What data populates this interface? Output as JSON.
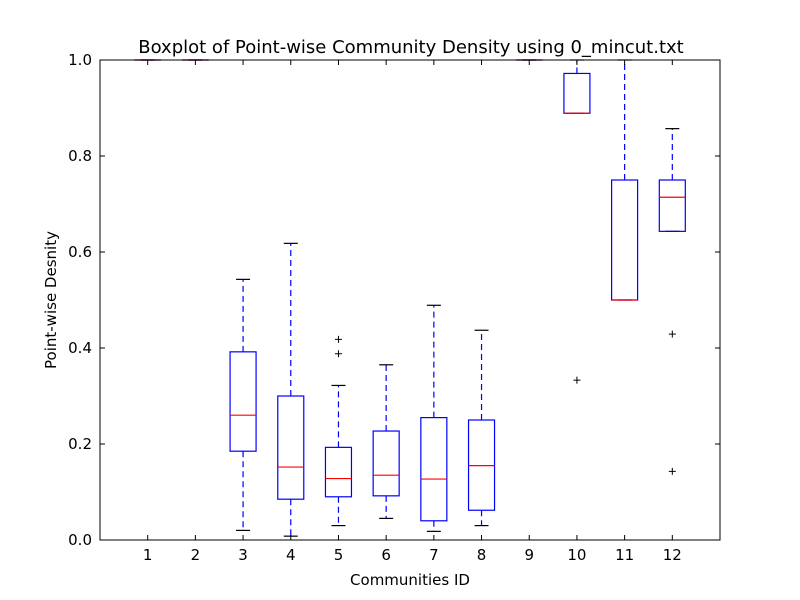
{
  "chart_data": {
    "type": "boxplot",
    "title": "Boxplot of Point-wise Community Density using 0_mincut.txt",
    "xlabel": "Communities ID",
    "ylabel": "Point-wise Desnity",
    "ylim": [
      0.0,
      1.0
    ],
    "yticks": [
      "0.0",
      "0.2",
      "0.4",
      "0.6",
      "0.8",
      "1.0"
    ],
    "categories": [
      "1",
      "2",
      "3",
      "4",
      "5",
      "6",
      "7",
      "8",
      "9",
      "10",
      "11",
      "12"
    ],
    "boxes": [
      {
        "id": "1",
        "whisker_low": 1.0,
        "q1": 1.0,
        "median": 1.0,
        "q3": 1.0,
        "whisker_high": 1.0,
        "outliers": []
      },
      {
        "id": "2",
        "whisker_low": 1.0,
        "q1": 1.0,
        "median": 1.0,
        "q3": 1.0,
        "whisker_high": 1.0,
        "outliers": []
      },
      {
        "id": "3",
        "whisker_low": 0.02,
        "q1": 0.185,
        "median": 0.26,
        "q3": 0.392,
        "whisker_high": 0.543,
        "outliers": []
      },
      {
        "id": "4",
        "whisker_low": 0.008,
        "q1": 0.085,
        "median": 0.152,
        "q3": 0.3,
        "whisker_high": 0.618,
        "outliers": []
      },
      {
        "id": "5",
        "whisker_low": 0.03,
        "q1": 0.09,
        "median": 0.128,
        "q3": 0.193,
        "whisker_high": 0.322,
        "outliers": [
          0.388,
          0.418
        ]
      },
      {
        "id": "6",
        "whisker_low": 0.045,
        "q1": 0.092,
        "median": 0.135,
        "q3": 0.227,
        "whisker_high": 0.365,
        "outliers": []
      },
      {
        "id": "7",
        "whisker_low": 0.018,
        "q1": 0.04,
        "median": 0.127,
        "q3": 0.255,
        "whisker_high": 0.489,
        "outliers": []
      },
      {
        "id": "8",
        "whisker_low": 0.03,
        "q1": 0.062,
        "median": 0.155,
        "q3": 0.25,
        "whisker_high": 0.437,
        "outliers": []
      },
      {
        "id": "9",
        "whisker_low": 1.0,
        "q1": 1.0,
        "median": 1.0,
        "q3": 1.0,
        "whisker_high": 1.0,
        "outliers": []
      },
      {
        "id": "10",
        "whisker_low": 0.889,
        "q1": 0.889,
        "median": 0.889,
        "q3": 0.972,
        "whisker_high": 1.0,
        "outliers": [
          0.333
        ]
      },
      {
        "id": "11",
        "whisker_low": 0.5,
        "q1": 0.5,
        "median": 0.5,
        "q3": 0.75,
        "whisker_high": 1.0,
        "outliers": []
      },
      {
        "id": "12",
        "whisker_low": 0.643,
        "q1": 0.643,
        "median": 0.714,
        "q3": 0.75,
        "whisker_high": 0.857,
        "outliers": [
          0.429,
          0.143
        ]
      }
    ],
    "colors": {
      "box": "#0000ff",
      "median": "#ff0000",
      "whisker": "#0000ff",
      "cap": "#000000",
      "outlier": "#000000"
    },
    "grid": false,
    "legend": "none"
  }
}
